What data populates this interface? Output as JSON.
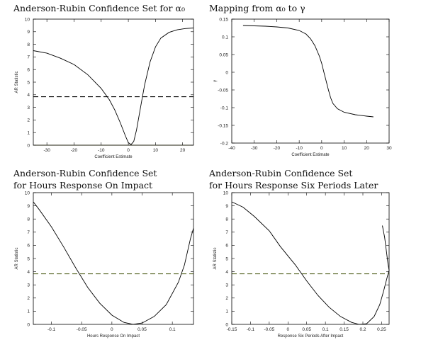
{
  "chart_data": [
    {
      "type": "line",
      "title": [
        "Anderson-Rubin Confidence Set for α₀"
      ],
      "xlabel": "Coefficient Estimate",
      "ylabel": "AR Statistic",
      "xlim": [
        -35,
        24
      ],
      "ylim": [
        0,
        10
      ],
      "xticks": [
        -30,
        -20,
        -10,
        0,
        10,
        20
      ],
      "yticks": [
        0,
        1,
        2,
        3,
        4,
        5,
        6,
        7,
        8,
        9,
        10
      ],
      "grid": false,
      "series": [
        {
          "style": "solid",
          "color": "#000000",
          "points": [
            [
              -35,
              7.5
            ],
            [
              -30,
              7.3
            ],
            [
              -25,
              6.9
            ],
            [
              -20,
              6.4
            ],
            [
              -15,
              5.6
            ],
            [
              -10,
              4.5
            ],
            [
              -7,
              3.6
            ],
            [
              -5,
              2.8
            ],
            [
              -3,
              1.8
            ],
            [
              -1,
              0.7
            ],
            [
              0,
              0.2
            ],
            [
              1,
              0.05
            ],
            [
              2,
              0.3
            ],
            [
              3,
              1.2
            ],
            [
              4,
              2.4
            ],
            [
              5,
              3.6
            ],
            [
              6,
              4.8
            ],
            [
              8,
              6.6
            ],
            [
              10,
              7.8
            ],
            [
              12,
              8.5
            ],
            [
              15,
              8.95
            ],
            [
              18,
              9.15
            ],
            [
              21,
              9.25
            ],
            [
              24,
              9.3
            ]
          ]
        },
        {
          "style": "dashed",
          "color": "#000000",
          "points": [
            [
              -35,
              3.84
            ],
            [
              24,
              3.84
            ]
          ]
        },
        {
          "style": "solid",
          "color": "#8a8f3a",
          "points": [
            [
              -35,
              0
            ],
            [
              24,
              0
            ]
          ]
        }
      ]
    },
    {
      "type": "line",
      "title": [
        "Mapping from α₀ to γ"
      ],
      "xlabel": "Coefficient Estimate",
      "ylabel": "γ",
      "xlim": [
        -40,
        30
      ],
      "ylim": [
        -0.2,
        0.15
      ],
      "xticks": [
        -40,
        -30,
        -20,
        -10,
        0,
        10,
        20,
        30
      ],
      "xtick_labels": [
        "-40",
        "-30",
        "-20",
        "-10",
        "0",
        "10",
        "20",
        "30"
      ],
      "yticks": [
        -0.2,
        -0.15,
        -0.1,
        -0.05,
        0,
        0.05,
        0.1,
        0.15
      ],
      "ytick_labels": [
        "-0.2",
        "-0.15",
        "-0.1",
        "-0.05",
        "0",
        "0.05",
        "0.1",
        "0.15"
      ],
      "grid": false,
      "series": [
        {
          "style": "solid",
          "color": "#000000",
          "points": [
            [
              -35,
              0.132
            ],
            [
              -30,
              0.131
            ],
            [
              -25,
              0.13
            ],
            [
              -20,
              0.128
            ],
            [
              -15,
              0.125
            ],
            [
              -10,
              0.118
            ],
            [
              -7,
              0.108
            ],
            [
              -5,
              0.095
            ],
            [
              -3,
              0.075
            ],
            [
              -1,
              0.045
            ],
            [
              0,
              0.025
            ],
            [
              1,
              0.0
            ],
            [
              2,
              -0.025
            ],
            [
              3,
              -0.05
            ],
            [
              4,
              -0.072
            ],
            [
              5,
              -0.088
            ],
            [
              7,
              -0.103
            ],
            [
              10,
              -0.113
            ],
            [
              15,
              -0.12
            ],
            [
              20,
              -0.124
            ],
            [
              23,
              -0.126
            ]
          ]
        }
      ]
    },
    {
      "type": "line",
      "title": [
        "Anderson-Rubin Confidence Set",
        "for Hours Response On Impact"
      ],
      "xlabel": "Hours Response On Impact",
      "ylabel": "AR Statistic",
      "xlim": [
        -0.13,
        0.135
      ],
      "ylim": [
        0,
        10
      ],
      "xticks": [
        -0.1,
        -0.05,
        0,
        0.05,
        0.1
      ],
      "xtick_labels": [
        "-0.1",
        "-0.05",
        "0",
        "0.05",
        "0.1"
      ],
      "yticks": [
        0,
        1,
        2,
        3,
        4,
        5,
        6,
        7,
        8,
        9,
        10
      ],
      "grid": false,
      "series": [
        {
          "style": "solid",
          "color": "#000000",
          "points": [
            [
              -0.13,
              9.3
            ],
            [
              -0.12,
              8.7
            ],
            [
              -0.1,
              7.4
            ],
            [
              -0.08,
              5.9
            ],
            [
              -0.06,
              4.3
            ],
            [
              -0.04,
              2.8
            ],
            [
              -0.02,
              1.6
            ],
            [
              0,
              0.7
            ],
            [
              0.02,
              0.15
            ],
            [
              0.035,
              0.0
            ],
            [
              0.05,
              0.1
            ],
            [
              0.07,
              0.6
            ],
            [
              0.09,
              1.5
            ],
            [
              0.11,
              3.2
            ],
            [
              0.12,
              4.5
            ],
            [
              0.13,
              6.5
            ],
            [
              0.135,
              7.3
            ]
          ]
        },
        {
          "style": "dashed",
          "color": "#5a6a2a",
          "points": [
            [
              -0.13,
              3.84
            ],
            [
              0.135,
              3.84
            ]
          ]
        }
      ]
    },
    {
      "type": "line",
      "title": [
        "Anderson-Rubin Confidence Set",
        "for Hours Response Six Periods Later"
      ],
      "xlabel": "Response Six Periods After Impact",
      "ylabel": "AR Statistic",
      "xlim": [
        -0.15,
        0.27
      ],
      "ylim": [
        0,
        10
      ],
      "xticks": [
        -0.15,
        -0.1,
        -0.05,
        0,
        0.05,
        0.1,
        0.15,
        0.2,
        0.25
      ],
      "xtick_labels": [
        "-0.15",
        "-0.1",
        "-0.05",
        "0",
        "0.05",
        "0.1",
        "0.15",
        "0.2",
        "0.25"
      ],
      "yticks": [
        0,
        1,
        2,
        3,
        4,
        5,
        6,
        7,
        8,
        9,
        10
      ],
      "grid": false,
      "series": [
        {
          "style": "solid",
          "color": "#000000",
          "points": [
            [
              -0.15,
              9.3
            ],
            [
              -0.12,
              8.9
            ],
            [
              -0.09,
              8.2
            ],
            [
              -0.05,
              7.1
            ],
            [
              -0.02,
              5.9
            ],
            [
              0.02,
              4.5
            ],
            [
              0.05,
              3.3
            ],
            [
              0.08,
              2.2
            ],
            [
              0.11,
              1.3
            ],
            [
              0.14,
              0.6
            ],
            [
              0.17,
              0.15
            ],
            [
              0.19,
              0.0
            ],
            [
              0.21,
              0.05
            ],
            [
              0.23,
              0.6
            ],
            [
              0.245,
              1.5
            ],
            [
              0.255,
              2.5
            ],
            [
              0.265,
              3.6
            ],
            [
              0.27,
              4.1
            ]
          ]
        },
        {
          "style": "solid",
          "color": "#000000",
          "points": [
            [
              0.252,
              7.5
            ],
            [
              0.258,
              6.6
            ],
            [
              0.263,
              5.5
            ],
            [
              0.267,
              4.6
            ],
            [
              0.27,
              4.1
            ]
          ]
        },
        {
          "style": "dashed",
          "color": "#5a6a2a",
          "points": [
            [
              -0.15,
              3.84
            ],
            [
              0.27,
              3.84
            ]
          ]
        }
      ]
    }
  ]
}
